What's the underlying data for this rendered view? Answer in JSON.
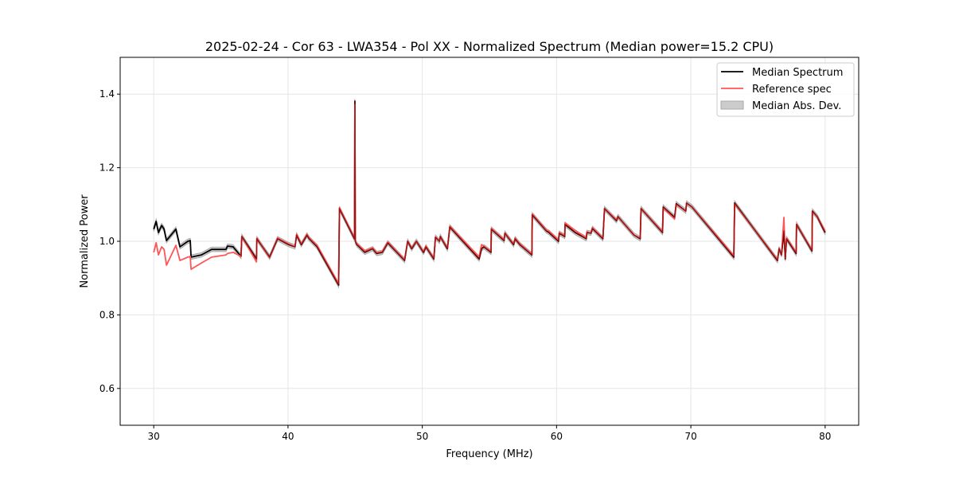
{
  "chart_data": {
    "type": "line",
    "title": "2025-02-24 - Cor 63 - LWA354 - Pol XX - Normalized Spectrum (Median power=15.2 CPU)",
    "xlabel": "Frequency (MHz)",
    "ylabel": "Normalized Power",
    "xlim": [
      27.5,
      82.5
    ],
    "ylim": [
      0.5,
      1.5
    ],
    "xticks": [
      30,
      40,
      50,
      60,
      70,
      80
    ],
    "xtick_labels": [
      "30",
      "40",
      "50",
      "60",
      "70",
      "80"
    ],
    "yticks": [
      0.6,
      0.8,
      1.0,
      1.2,
      1.4
    ],
    "ytick_labels": [
      "0.6",
      "0.8",
      "1.0",
      "1.2",
      "1.4"
    ],
    "grid": true,
    "legend": {
      "placement": "top-right",
      "entries": [
        "Median Spectrum",
        "Reference spec",
        "Median Abs. Dev."
      ]
    },
    "colors": {
      "median": "#000000",
      "reference": "#ff5555",
      "overlap": "#8b0000",
      "mad": "#bbbbbb"
    },
    "mad_halfwidth": 0.006,
    "series": [
      {
        "name": "Median Spectrum",
        "points": [
          [
            30.0,
            1.033
          ],
          [
            30.18,
            1.054
          ],
          [
            30.35,
            1.024
          ],
          [
            30.59,
            1.043
          ],
          [
            30.77,
            1.033
          ],
          [
            30.95,
            1.002
          ],
          [
            31.65,
            1.033
          ],
          [
            31.95,
            0.985
          ],
          [
            32.54,
            1.0
          ],
          [
            32.72,
            1.002
          ],
          [
            32.78,
            0.957
          ],
          [
            33.55,
            0.963
          ],
          [
            34.31,
            0.978
          ],
          [
            35.38,
            0.978
          ],
          [
            35.5,
            0.987
          ],
          [
            35.91,
            0.985
          ],
          [
            36.5,
            0.959
          ],
          [
            36.56,
            1.013
          ],
          [
            37.65,
            0.952
          ],
          [
            37.68,
            1.007
          ],
          [
            38.63,
            0.957
          ],
          [
            39.22,
            1.007
          ],
          [
            40.05,
            0.991
          ],
          [
            40.52,
            0.985
          ],
          [
            40.64,
            1.017
          ],
          [
            40.99,
            0.991
          ],
          [
            41.41,
            1.017
          ],
          [
            41.58,
            1.007
          ],
          [
            42.17,
            0.985
          ],
          [
            43.77,
            0.881
          ],
          [
            43.83,
            1.089
          ],
          [
            44.95,
            1.007
          ],
          [
            44.98,
            1.381
          ],
          [
            45.01,
            1.0
          ],
          [
            45.13,
            0.991
          ],
          [
            45.72,
            0.97
          ],
          [
            46.3,
            0.98
          ],
          [
            46.6,
            0.967
          ],
          [
            47.02,
            0.97
          ],
          [
            47.43,
            0.996
          ],
          [
            48.68,
            0.948
          ],
          [
            48.91,
            1.0
          ],
          [
            49.21,
            0.98
          ],
          [
            49.56,
            1.0
          ],
          [
            50.09,
            0.97
          ],
          [
            50.27,
            0.985
          ],
          [
            50.86,
            0.952
          ],
          [
            50.98,
            1.011
          ],
          [
            51.28,
            1.0
          ],
          [
            51.34,
            1.013
          ],
          [
            51.87,
            0.98
          ],
          [
            52.05,
            1.039
          ],
          [
            54.23,
            0.952
          ],
          [
            54.41,
            0.98
          ],
          [
            54.59,
            0.985
          ],
          [
            55.12,
            0.97
          ],
          [
            55.14,
            1.033
          ],
          [
            56.09,
            1.002
          ],
          [
            56.15,
            1.022
          ],
          [
            56.8,
            0.991
          ],
          [
            56.91,
            1.007
          ],
          [
            57.27,
            0.991
          ],
          [
            58.16,
            0.963
          ],
          [
            58.19,
            1.072
          ],
          [
            59.25,
            1.028
          ],
          [
            59.43,
            1.024
          ],
          [
            60.14,
            1.0
          ],
          [
            60.2,
            1.022
          ],
          [
            60.61,
            1.013
          ],
          [
            60.63,
            1.046
          ],
          [
            61.38,
            1.024
          ],
          [
            62.21,
            1.007
          ],
          [
            62.26,
            1.024
          ],
          [
            62.56,
            1.022
          ],
          [
            62.67,
            1.035
          ],
          [
            63.45,
            1.007
          ],
          [
            63.57,
            1.089
          ],
          [
            64.46,
            1.056
          ],
          [
            64.57,
            1.067
          ],
          [
            65.76,
            1.017
          ],
          [
            66.23,
            1.007
          ],
          [
            66.29,
            1.089
          ],
          [
            67.89,
            1.024
          ],
          [
            67.94,
            1.093
          ],
          [
            68.79,
            1.065
          ],
          [
            68.91,
            1.102
          ],
          [
            69.62,
            1.082
          ],
          [
            69.68,
            1.104
          ],
          [
            70.09,
            1.093
          ],
          [
            73.2,
            0.957
          ],
          [
            73.26,
            1.104
          ],
          [
            76.45,
            0.948
          ],
          [
            76.57,
            0.98
          ],
          [
            76.75,
            0.963
          ],
          [
            76.93,
            1.028
          ],
          [
            77.03,
            0.952
          ],
          [
            77.13,
            1.007
          ],
          [
            77.84,
            0.967
          ],
          [
            77.87,
            1.046
          ],
          [
            79.02,
            0.974
          ],
          [
            79.05,
            1.082
          ],
          [
            79.41,
            1.067
          ],
          [
            80.0,
            1.024
          ]
        ]
      },
      {
        "name": "Reference spec",
        "points": [
          [
            30.0,
            0.97
          ],
          [
            30.18,
            0.996
          ],
          [
            30.35,
            0.963
          ],
          [
            30.59,
            0.985
          ],
          [
            30.77,
            0.978
          ],
          [
            30.95,
            0.935
          ],
          [
            31.65,
            0.989
          ],
          [
            31.95,
            0.948
          ],
          [
            32.54,
            0.957
          ],
          [
            32.72,
            0.959
          ],
          [
            32.78,
            0.924
          ],
          [
            33.55,
            0.941
          ],
          [
            34.31,
            0.957
          ],
          [
            35.38,
            0.963
          ],
          [
            35.5,
            0.967
          ],
          [
            35.91,
            0.97
          ],
          [
            36.5,
            0.959
          ],
          [
            36.56,
            1.013
          ],
          [
            37.65,
            0.944
          ],
          [
            37.68,
            1.009
          ],
          [
            38.63,
            0.955
          ],
          [
            39.22,
            1.009
          ],
          [
            40.05,
            0.993
          ],
          [
            40.52,
            0.985
          ],
          [
            40.64,
            1.019
          ],
          [
            40.99,
            0.993
          ],
          [
            41.41,
            1.019
          ],
          [
            41.58,
            1.009
          ],
          [
            42.17,
            0.989
          ],
          [
            43.77,
            0.885
          ],
          [
            43.83,
            1.091
          ],
          [
            44.95,
            1.009
          ],
          [
            44.98,
            1.372
          ],
          [
            45.01,
            1.0
          ],
          [
            45.13,
            0.993
          ],
          [
            45.72,
            0.974
          ],
          [
            46.3,
            0.982
          ],
          [
            46.6,
            0.969
          ],
          [
            47.02,
            0.972
          ],
          [
            47.43,
            0.998
          ],
          [
            48.68,
            0.95
          ],
          [
            48.91,
            1.0
          ],
          [
            49.21,
            0.982
          ],
          [
            49.56,
            1.0
          ],
          [
            50.09,
            0.972
          ],
          [
            50.27,
            0.987
          ],
          [
            50.86,
            0.954
          ],
          [
            50.98,
            1.011
          ],
          [
            51.28,
            1.0
          ],
          [
            51.34,
            1.013
          ],
          [
            51.87,
            0.982
          ],
          [
            52.05,
            1.041
          ],
          [
            54.23,
            0.958
          ],
          [
            54.41,
            0.991
          ],
          [
            54.59,
            0.987
          ],
          [
            55.12,
            0.972
          ],
          [
            55.14,
            1.035
          ],
          [
            56.09,
            1.004
          ],
          [
            56.15,
            1.022
          ],
          [
            56.8,
            0.993
          ],
          [
            56.91,
            1.009
          ],
          [
            57.27,
            0.993
          ],
          [
            58.16,
            0.965
          ],
          [
            58.19,
            1.074
          ],
          [
            59.25,
            1.03
          ],
          [
            59.43,
            1.028
          ],
          [
            60.14,
            1.004
          ],
          [
            60.2,
            1.024
          ],
          [
            60.61,
            1.015
          ],
          [
            60.63,
            1.05
          ],
          [
            61.38,
            1.03
          ],
          [
            62.21,
            1.009
          ],
          [
            62.26,
            1.026
          ],
          [
            62.56,
            1.022
          ],
          [
            62.67,
            1.037
          ],
          [
            63.45,
            1.009
          ],
          [
            63.57,
            1.089
          ],
          [
            64.46,
            1.058
          ],
          [
            64.57,
            1.067
          ],
          [
            65.76,
            1.017
          ],
          [
            66.23,
            1.009
          ],
          [
            66.29,
            1.089
          ],
          [
            67.89,
            1.026
          ],
          [
            67.94,
            1.091
          ],
          [
            68.79,
            1.061
          ],
          [
            68.91,
            1.1
          ],
          [
            69.62,
            1.082
          ],
          [
            69.68,
            1.104
          ],
          [
            70.09,
            1.093
          ],
          [
            73.2,
            0.961
          ],
          [
            73.26,
            1.102
          ],
          [
            76.45,
            0.95
          ],
          [
            76.57,
            0.98
          ],
          [
            76.75,
            0.963
          ],
          [
            76.93,
            1.065
          ],
          [
            77.03,
            0.955
          ],
          [
            77.13,
            1.009
          ],
          [
            77.84,
            0.97
          ],
          [
            77.87,
            1.046
          ],
          [
            79.02,
            0.976
          ],
          [
            79.05,
            1.08
          ],
          [
            79.41,
            1.067
          ],
          [
            80.0,
            1.028
          ]
        ]
      }
    ]
  }
}
